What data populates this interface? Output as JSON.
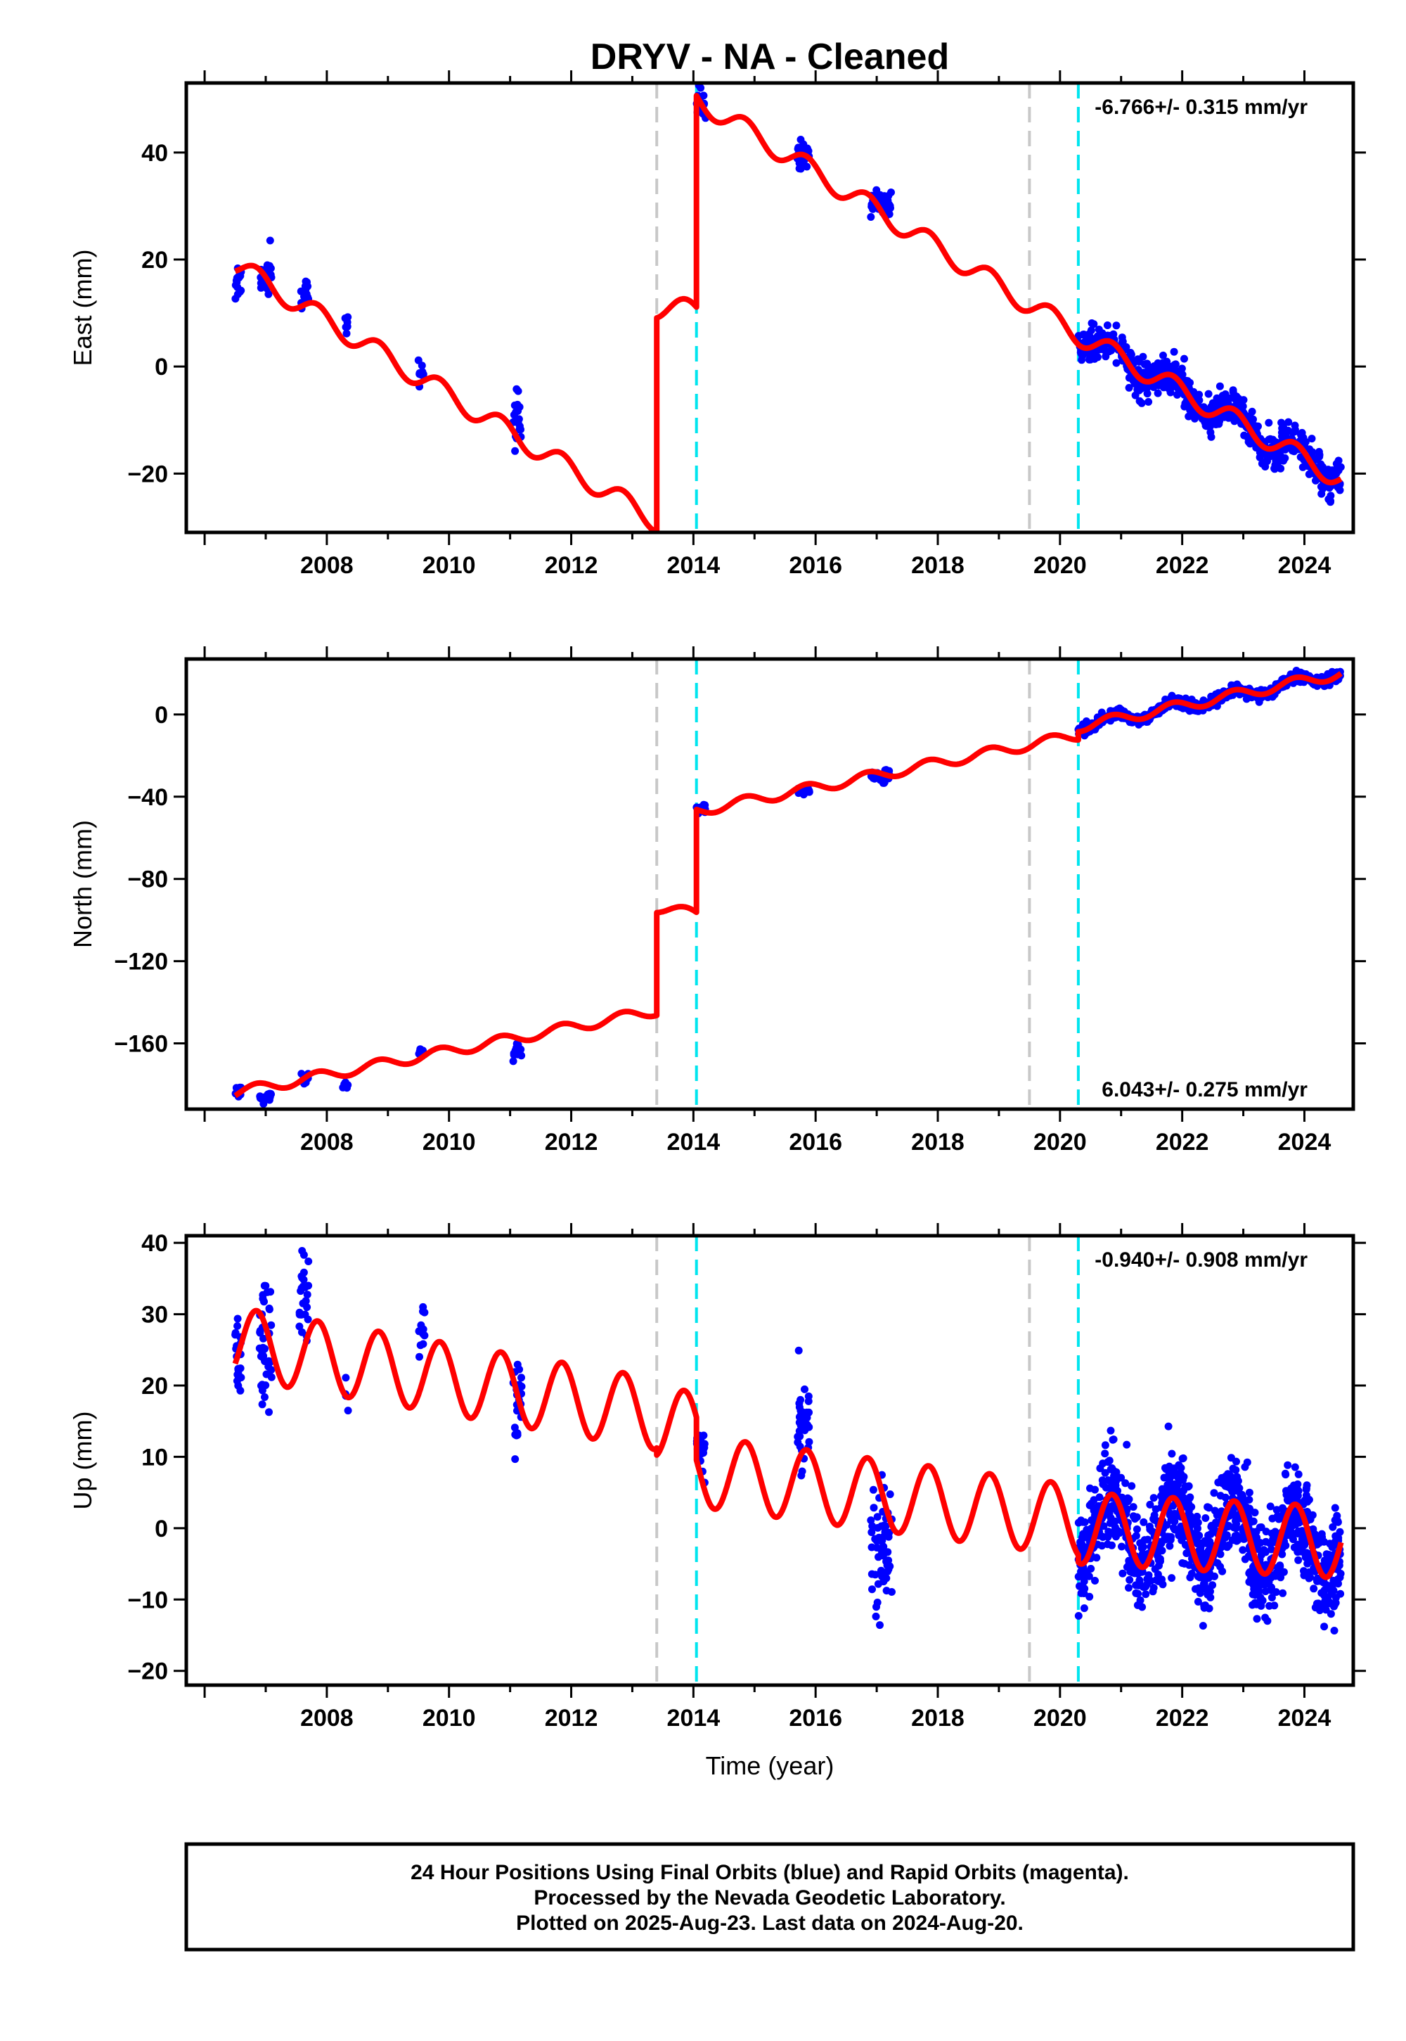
{
  "chart_data": {
    "type": "scatter",
    "title": "DRYV  - NA - Cleaned",
    "xlabel": "Time (year)",
    "xlim": [
      2005.7,
      2024.8
    ],
    "xticks": [
      2008,
      2010,
      2012,
      2014,
      2016,
      2018,
      2020,
      2022,
      2024
    ],
    "vlines": [
      {
        "x": 2013.4,
        "color": "#c8c8c8"
      },
      {
        "x": 2014.05,
        "color": "#00e5ee"
      },
      {
        "x": 2019.5,
        "color": "#c8c8c8"
      },
      {
        "x": 2020.3,
        "color": "#00e5ee"
      }
    ],
    "colors": {
      "data": "#0000ff",
      "model": "#ff0000",
      "frame": "#000000"
    },
    "panels": [
      {
        "name": "east",
        "ylabel": "East (mm)",
        "ylim": [
          -31,
          53
        ],
        "yticks": [
          -20,
          0,
          20,
          40
        ],
        "ytick_labels": [
          "−20",
          "0",
          "20",
          "40"
        ],
        "rate_label": "-6.766+/- 0.315 mm/yr",
        "rate_position": "top-right",
        "amp": 2.0,
        "model_segments": [
          {
            "x0": 2006.5,
            "x1": 2013.4,
            "y0": 19.0,
            "y1": -29.0
          },
          {
            "x0": 2013.4,
            "x1": 2014.05,
            "y0": 11.0,
            "y1": 10.5
          },
          {
            "x0": 2014.05,
            "x1": 2020.3,
            "y0": 50.0,
            "y1": 6.0
          },
          {
            "x0": 2020.3,
            "x1": 2024.6,
            "y0": 6.0,
            "y1": -21.0
          }
        ],
        "data_clusters": [
          {
            "x0": 2006.5,
            "x1": 2006.6,
            "y": 16.0,
            "spread": 3.0,
            "n": 14
          },
          {
            "x0": 2006.9,
            "x1": 2007.1,
            "y": 17.0,
            "spread": 4.0,
            "n": 24
          },
          {
            "x0": 2007.55,
            "x1": 2007.7,
            "y": 13.5,
            "spread": 3.0,
            "n": 14
          },
          {
            "x0": 2008.25,
            "x1": 2008.35,
            "y": 8.0,
            "spread": 2.0,
            "n": 6
          },
          {
            "x0": 2009.5,
            "x1": 2009.6,
            "y": -1.5,
            "spread": 2.5,
            "n": 10
          },
          {
            "x0": 2011.05,
            "x1": 2011.2,
            "y": -11.0,
            "spread": 5.0,
            "n": 20
          },
          {
            "x0": 2014.05,
            "x1": 2014.2,
            "y": 49.0,
            "spread": 2.5,
            "n": 16
          },
          {
            "x0": 2015.7,
            "x1": 2015.9,
            "y": 39.5,
            "spread": 2.5,
            "n": 26
          },
          {
            "x0": 2016.9,
            "x1": 2017.25,
            "y": 30.0,
            "spread": 3.0,
            "n": 40
          },
          {
            "x0": 2020.3,
            "x1": 2024.6,
            "y": 0.0,
            "spread": 3.0,
            "n": 700
          }
        ]
      },
      {
        "name": "north",
        "ylabel": "North (mm)",
        "ylim": [
          -192,
          27
        ],
        "yticks": [
          -160,
          -120,
          -80,
          -40,
          0
        ],
        "ytick_labels": [
          "−160",
          "−120",
          "−80",
          "−40",
          "0"
        ],
        "rate_label": "6.043+/- 0.275 mm/yr",
        "rate_position": "bottom-right",
        "amp": 2.5,
        "model_segments": [
          {
            "x0": 2006.5,
            "x1": 2013.4,
            "y0": -184.0,
            "y1": -144.0
          },
          {
            "x0": 2013.4,
            "x1": 2014.05,
            "y0": -94.0,
            "y1": -97.0
          },
          {
            "x0": 2014.05,
            "x1": 2020.3,
            "y0": -47.0,
            "y1": -10.0
          },
          {
            "x0": 2020.3,
            "x1": 2024.6,
            "y0": -6.0,
            "y1": 20.0
          }
        ],
        "data_clusters": [
          {
            "x0": 2006.5,
            "x1": 2006.6,
            "y": -184.0,
            "spread": 2.5,
            "n": 10
          },
          {
            "x0": 2006.9,
            "x1": 2007.1,
            "y": -186.0,
            "spread": 3.0,
            "n": 20
          },
          {
            "x0": 2007.55,
            "x1": 2007.7,
            "y": -177.0,
            "spread": 2.0,
            "n": 12
          },
          {
            "x0": 2008.25,
            "x1": 2008.35,
            "y": -180.0,
            "spread": 1.5,
            "n": 5
          },
          {
            "x0": 2009.5,
            "x1": 2009.6,
            "y": -164.0,
            "spread": 2.0,
            "n": 8
          },
          {
            "x0": 2011.05,
            "x1": 2011.2,
            "y": -163.0,
            "spread": 4.0,
            "n": 16
          },
          {
            "x0": 2014.05,
            "x1": 2014.2,
            "y": -46.0,
            "spread": 2.0,
            "n": 14
          },
          {
            "x0": 2015.7,
            "x1": 2015.9,
            "y": -37.0,
            "spread": 2.5,
            "n": 20
          },
          {
            "x0": 2016.9,
            "x1": 2017.25,
            "y": -30.0,
            "spread": 2.5,
            "n": 30
          },
          {
            "x0": 2020.3,
            "x1": 2024.6,
            "y": 0.0,
            "spread": 2.5,
            "n": 600
          }
        ]
      },
      {
        "name": "up",
        "ylabel": "Up (mm)",
        "ylim": [
          -22,
          41
        ],
        "yticks": [
          -20,
          -10,
          0,
          10,
          20,
          30,
          40
        ],
        "ytick_labels": [
          "−20",
          "−10",
          "0",
          "10",
          "20",
          "30",
          "40"
        ],
        "rate_label": "-0.940+/- 0.908 mm/yr",
        "rate_position": "top-right",
        "amp": 5.0,
        "model_segments": [
          {
            "x0": 2006.5,
            "x1": 2013.4,
            "y0": 26.0,
            "y1": 16.0
          },
          {
            "x0": 2013.4,
            "x1": 2014.05,
            "y0": 15.0,
            "y1": 14.0
          },
          {
            "x0": 2014.05,
            "x1": 2020.3,
            "y0": 8.0,
            "y1": 1.0
          },
          {
            "x0": 2020.3,
            "x1": 2024.6,
            "y0": 0.0,
            "y1": -2.0
          }
        ],
        "data_clusters": [
          {
            "x0": 2006.5,
            "x1": 2006.6,
            "y": 24.0,
            "spread": 6.0,
            "n": 20
          },
          {
            "x0": 2006.9,
            "x1": 2007.1,
            "y": 26.0,
            "spread": 7.0,
            "n": 40
          },
          {
            "x0": 2007.55,
            "x1": 2007.7,
            "y": 32.0,
            "spread": 5.0,
            "n": 26
          },
          {
            "x0": 2008.25,
            "x1": 2008.35,
            "y": 18.0,
            "spread": 2.0,
            "n": 4
          },
          {
            "x0": 2009.5,
            "x1": 2009.6,
            "y": 28.0,
            "spread": 4.0,
            "n": 12
          },
          {
            "x0": 2011.05,
            "x1": 2011.2,
            "y": 19.0,
            "spread": 6.0,
            "n": 26
          },
          {
            "x0": 2014.05,
            "x1": 2014.2,
            "y": 11.0,
            "spread": 4.0,
            "n": 24
          },
          {
            "x0": 2015.7,
            "x1": 2015.9,
            "y": 14.0,
            "spread": 6.0,
            "n": 36
          },
          {
            "x0": 2016.9,
            "x1": 2017.25,
            "y": -3.0,
            "spread": 9.0,
            "n": 60
          },
          {
            "x0": 2020.3,
            "x1": 2024.6,
            "y": 0.0,
            "spread": 6.0,
            "n": 1100
          }
        ]
      }
    ]
  },
  "footer": {
    "line1": "24 Hour Positions Using Final Orbits (blue) and Rapid Orbits (magenta).",
    "line2": "Processed by the Nevada Geodetic Laboratory.",
    "line3": "Plotted on 2025-Aug-23. Last data on 2024-Aug-20."
  }
}
